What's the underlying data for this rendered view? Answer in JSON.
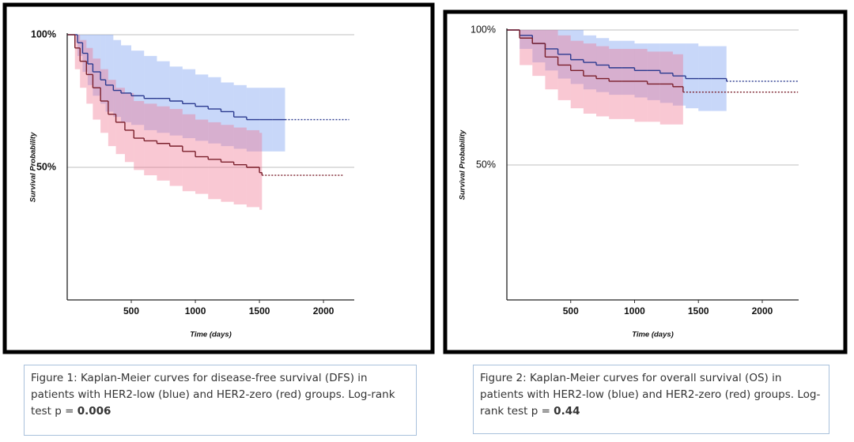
{
  "chart_data": [
    {
      "type": "line",
      "step": true,
      "ylabel": "Survival Probability",
      "xlabel": "Time (days)",
      "xlim": [
        0,
        2240
      ],
      "ylim": [
        0,
        100
      ],
      "xticks": [
        500,
        1000,
        1500,
        2000
      ],
      "yticks": [
        {
          "value": 100,
          "label": "100%"
        },
        {
          "value": 50,
          "label": "50%"
        }
      ],
      "grid": true,
      "series": [
        {
          "color": "#2b3a8f",
          "band_color": "rgba(110,150,240,0.38)",
          "x": [
            0,
            80,
            120,
            160,
            200,
            260,
            300,
            360,
            420,
            500,
            600,
            700,
            800,
            900,
            1000,
            1100,
            1200,
            1300,
            1400,
            1500,
            1600,
            1700
          ],
          "values": [
            100,
            97,
            93,
            89,
            86,
            83,
            81,
            79,
            78,
            77,
            76,
            76,
            75,
            74,
            73,
            72,
            71,
            69,
            68,
            68,
            68,
            68
          ],
          "upper": [
            100,
            100,
            100,
            100,
            100,
            100,
            100,
            98,
            96,
            94,
            92,
            90,
            88,
            87,
            85,
            84,
            82,
            81,
            80,
            80,
            80,
            80
          ],
          "lower": [
            100,
            92,
            86,
            81,
            77,
            74,
            71,
            69,
            67,
            66,
            64,
            63,
            62,
            61,
            60,
            59,
            58,
            57,
            56,
            56,
            56,
            56
          ],
          "dotted_to": 2200
        },
        {
          "color": "#7a1f2b",
          "band_color": "rgba(240,110,140,0.38)",
          "x": [
            0,
            60,
            100,
            150,
            200,
            260,
            320,
            380,
            450,
            520,
            600,
            700,
            800,
            900,
            1000,
            1100,
            1200,
            1300,
            1400,
            1500,
            1520
          ],
          "values": [
            100,
            95,
            90,
            85,
            80,
            75,
            70,
            67,
            64,
            61,
            60,
            59,
            58,
            56,
            54,
            53,
            52,
            51,
            50,
            48,
            47
          ],
          "upper": [
            100,
            100,
            98,
            95,
            91,
            87,
            83,
            80,
            78,
            75,
            74,
            73,
            72,
            70,
            68,
            67,
            66,
            65,
            64,
            63,
            63
          ],
          "lower": [
            100,
            87,
            80,
            74,
            68,
            63,
            58,
            55,
            52,
            49,
            47,
            45,
            43,
            41,
            40,
            38,
            37,
            36,
            35,
            34,
            33
          ],
          "dotted_to": 2150
        }
      ],
      "caption": "Figure 1: Kaplan-Meier curves for disease-free survival (DFS) in patients with HER2-low (blue) and HER2-zero (red) groups. Log-rank test p = ",
      "caption_p_value": "0.006"
    },
    {
      "type": "line",
      "step": true,
      "ylabel": "Survival Probability",
      "xlabel": "Time (days)",
      "xlim": [
        0,
        2285
      ],
      "ylim": [
        0,
        100
      ],
      "xticks": [
        500,
        1000,
        1500,
        2000
      ],
      "yticks": [
        {
          "value": 100,
          "label": "100%"
        },
        {
          "value": 50,
          "label": "50%"
        }
      ],
      "grid": true,
      "series": [
        {
          "color": "#2b3a8f",
          "band_color": "rgba(110,150,240,0.38)",
          "x": [
            0,
            100,
            200,
            300,
            400,
            500,
            600,
            700,
            800,
            900,
            1000,
            1100,
            1200,
            1300,
            1400,
            1500,
            1600,
            1720
          ],
          "values": [
            100,
            98,
            95,
            93,
            91,
            89,
            88,
            87,
            86,
            86,
            85,
            85,
            84,
            83,
            82,
            82,
            82,
            81
          ],
          "upper": [
            100,
            100,
            100,
            100,
            100,
            100,
            98,
            97,
            96,
            96,
            95,
            95,
            95,
            95,
            95,
            94,
            94,
            94
          ],
          "lower": [
            100,
            93,
            88,
            85,
            82,
            80,
            78,
            77,
            76,
            76,
            75,
            74,
            73,
            72,
            71,
            70,
            70,
            70
          ],
          "dotted_to": 2280
        },
        {
          "color": "#7a1f2b",
          "band_color": "rgba(240,110,140,0.38)",
          "x": [
            0,
            100,
            200,
            300,
            400,
            500,
            600,
            700,
            800,
            900,
            1000,
            1100,
            1200,
            1300,
            1380
          ],
          "values": [
            100,
            97,
            95,
            90,
            87,
            85,
            83,
            82,
            81,
            81,
            81,
            80,
            80,
            79,
            77
          ],
          "upper": [
            100,
            100,
            100,
            100,
            98,
            96,
            95,
            94,
            93,
            93,
            93,
            92,
            92,
            91,
            90
          ],
          "lower": [
            100,
            87,
            83,
            78,
            74,
            71,
            69,
            68,
            67,
            67,
            66,
            66,
            65,
            65,
            63
          ],
          "dotted_to": 2280
        }
      ],
      "caption": "Figure 2: Kaplan-Meier curves for overall survival (OS) in patients with HER2-low (blue) and HER2-zero (red) groups. Log-rank test p = ",
      "caption_p_value": "0.44"
    }
  ]
}
